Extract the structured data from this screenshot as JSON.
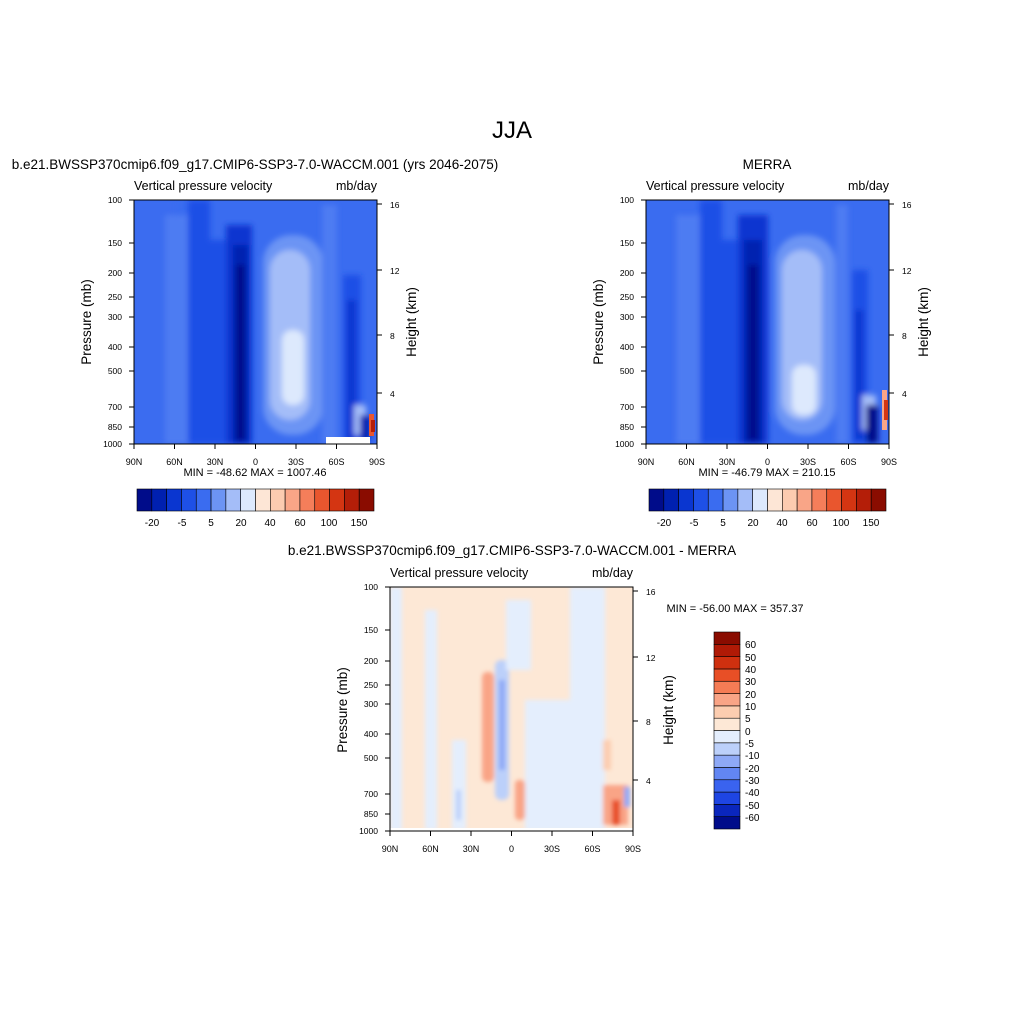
{
  "page": {
    "title": "JJA"
  },
  "colors": {
    "colormap_full": [
      "#000c8a",
      "#0020b0",
      "#0a36d0",
      "#1e50e6",
      "#3a6cf0",
      "#6c94f4",
      "#a4bdf8",
      "#dde9fd",
      "#fde6d6",
      "#fccbb0",
      "#f9a587",
      "#f57e5a",
      "#e9562e",
      "#d43512",
      "#b41e08",
      "#8a0c00"
    ],
    "colormap_diff": [
      "#000c8a",
      "#0a26bd",
      "#1e45e3",
      "#3a63ef",
      "#6286f3",
      "#8ea9f6",
      "#bcd0fa",
      "#e4eefd",
      "#fde8d6",
      "#fccdb0",
      "#f9a486",
      "#f57c55",
      "#e84f26",
      "#cf300f",
      "#b01a06",
      "#8a0c00"
    ]
  },
  "chart_data": [
    {
      "type": "heatmap",
      "title": "b.e21.BWSSP370cmip6.f09_g17.CMIP6-SSP3-7.0-WACCM.001 (yrs 2046-2075)",
      "left_string": "Vertical pressure velocity",
      "right_string": "mb/day",
      "ylabel": "Pressure (mb)",
      "y2label": "Height (km)",
      "x_ticks": [
        "90N",
        "60N",
        "30N",
        "0",
        "30S",
        "60S",
        "90S"
      ],
      "y_ticks": [
        "100",
        "150",
        "200",
        "250",
        "300",
        "400",
        "500",
        "700",
        "850",
        "1000"
      ],
      "y2_ticks": [
        "16",
        "12",
        "8",
        "4"
      ],
      "ylim": [
        1000,
        100
      ],
      "stats": "MIN = -48.62  MAX = 1007.46",
      "colorbar": {
        "orientation": "horizontal",
        "labels": [
          "-20",
          "-5",
          "5",
          "20",
          "40",
          "60",
          "100",
          "150"
        ]
      }
    },
    {
      "type": "heatmap",
      "title": "MERRA",
      "left_string": "Vertical pressure velocity",
      "right_string": "mb/day",
      "ylabel": "Pressure (mb)",
      "y2label": "Height (km)",
      "x_ticks": [
        "90N",
        "60N",
        "30N",
        "0",
        "30S",
        "60S",
        "90S"
      ],
      "y_ticks": [
        "100",
        "150",
        "200",
        "250",
        "300",
        "400",
        "500",
        "700",
        "850",
        "1000"
      ],
      "y2_ticks": [
        "16",
        "12",
        "8",
        "4"
      ],
      "ylim": [
        1000,
        100
      ],
      "stats": "MIN = -46.79  MAX = 210.15",
      "colorbar": {
        "orientation": "horizontal",
        "labels": [
          "-20",
          "-5",
          "5",
          "20",
          "40",
          "60",
          "100",
          "150"
        ]
      }
    },
    {
      "type": "heatmap",
      "title": "b.e21.BWSSP370cmip6.f09_g17.CMIP6-SSP3-7.0-WACCM.001 - MERRA",
      "left_string": "Vertical pressure velocity",
      "right_string": "mb/day",
      "ylabel": "Pressure (mb)",
      "y2label": "Height (km)",
      "x_ticks": [
        "90N",
        "60N",
        "30N",
        "0",
        "30S",
        "60S",
        "90S"
      ],
      "y_ticks": [
        "100",
        "150",
        "200",
        "250",
        "300",
        "400",
        "500",
        "700",
        "850",
        "1000"
      ],
      "y2_ticks": [
        "16",
        "12",
        "8",
        "4"
      ],
      "ylim": [
        1000,
        100
      ],
      "stats": "MIN = -56.00  MAX = 357.37",
      "colorbar": {
        "orientation": "vertical",
        "labels": [
          "60",
          "50",
          "40",
          "30",
          "20",
          "10",
          "5",
          "0",
          "-5",
          "-10",
          "-20",
          "-30",
          "-40",
          "-50",
          "-60"
        ]
      }
    }
  ]
}
